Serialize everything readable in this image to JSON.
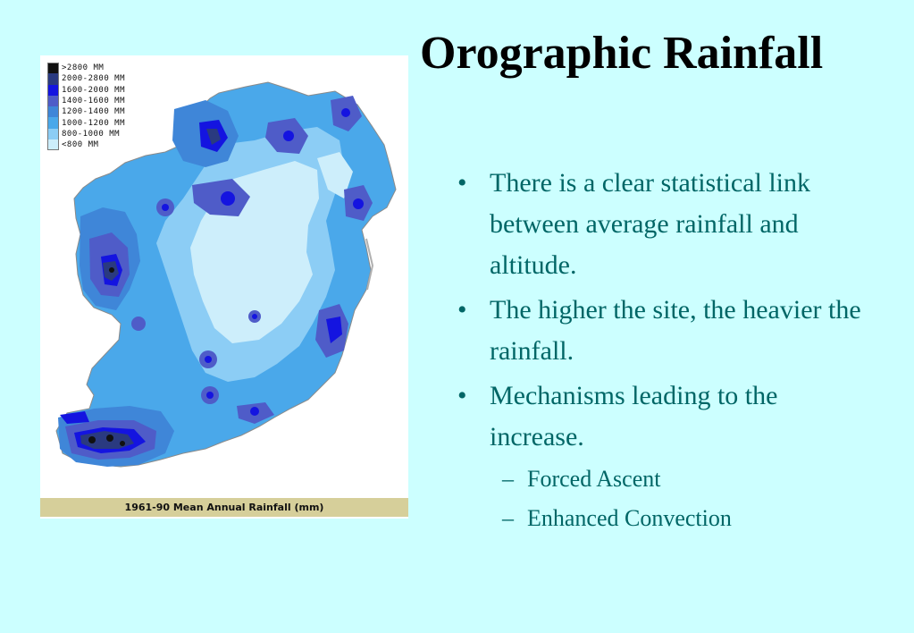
{
  "slide": {
    "title": "Orographic Rainfall",
    "background": "#ccffff",
    "text_color": "#006666"
  },
  "map": {
    "caption": "1961-90 Mean Annual Rainfall (mm)",
    "legend": [
      {
        "label": ">2800 MM",
        "color": "#111111"
      },
      {
        "label": "2000-2800 MM",
        "color": "#2a3a80"
      },
      {
        "label": "1600-2000 MM",
        "color": "#1414e0"
      },
      {
        "label": "1400-1600 MM",
        "color": "#4f5cc8"
      },
      {
        "label": "1200-1400 MM",
        "color": "#3f86d8"
      },
      {
        "label": "1000-1200 MM",
        "color": "#4aa8ea"
      },
      {
        "label": "800-1000 MM",
        "color": "#8ccdf5"
      },
      {
        "label": "<800 MM",
        "color": "#cdeefb"
      }
    ]
  },
  "bullets": [
    {
      "marker": "•",
      "text": "There is a clear statistical link between average rainfall and altitude."
    },
    {
      "marker": "•",
      "text": "The higher the site, the heavier the rainfall."
    },
    {
      "marker": "•",
      "text": "Mechanisms leading to the increase."
    }
  ],
  "sub_bullets": [
    {
      "marker": "–",
      "text": "Forced Ascent"
    },
    {
      "marker": "–",
      "text": "Enhanced Convection"
    }
  ]
}
